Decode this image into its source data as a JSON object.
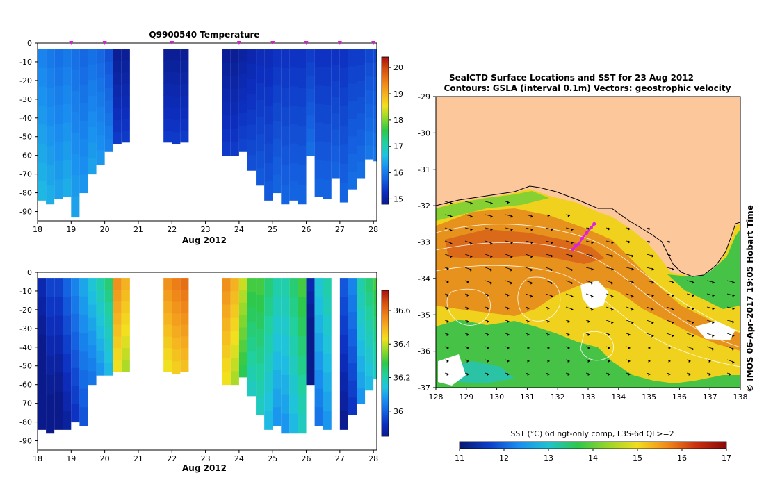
{
  "colors": {
    "land": "#fbc79b",
    "cmap_temp": [
      "#0a1a8a",
      "#0d2fc0",
      "#1460e0",
      "#1a8ef0",
      "#1fc3e0",
      "#20d0a0",
      "#2ec84a",
      "#8ed82a",
      "#f2e01e",
      "#f5b020",
      "#ee8018",
      "#d45010",
      "#a81010"
    ],
    "cmap_sst": [
      "#08186e",
      "#0d3ec9",
      "#1a8ef0",
      "#1fc3cf",
      "#2ec84a",
      "#9ad52a",
      "#f1dd1e",
      "#f28a18",
      "#c83010",
      "#8a0808"
    ]
  },
  "chart_data": [
    {
      "type": "heatmap",
      "title": "Q9900540  Temperature",
      "xlabel": "Aug 2012",
      "xticks": [
        "18",
        "19",
        "20",
        "21",
        "22",
        "23",
        "24",
        "25",
        "26",
        "27",
        "28"
      ],
      "xlim": [
        18,
        28.1
      ],
      "yticks": [
        "0",
        "-10",
        "-20",
        "-30",
        "-40",
        "-50",
        "-60",
        "-70",
        "-80",
        "-90"
      ],
      "ylim": [
        -95,
        0
      ],
      "colorbar_ticks": [
        "20",
        "19",
        "18",
        "17",
        "16",
        "15"
      ],
      "colorbar_range": [
        14.8,
        20.4
      ],
      "profile_marks_day": [
        19,
        20,
        22,
        24,
        25,
        26,
        27,
        28
      ],
      "profiles": [
        {
          "day": 18.0,
          "depth": -84,
          "value": 16.1
        },
        {
          "day": 18.25,
          "depth": -86,
          "value": 16.0
        },
        {
          "day": 18.5,
          "depth": -83,
          "value": 15.9
        },
        {
          "day": 18.75,
          "depth": -82,
          "value": 16.0
        },
        {
          "day": 19.0,
          "depth": -93,
          "value": 15.9
        },
        {
          "day": 19.25,
          "depth": -80,
          "value": 15.8
        },
        {
          "day": 19.5,
          "depth": -70,
          "value": 15.9
        },
        {
          "day": 19.75,
          "depth": -65,
          "value": 15.8
        },
        {
          "day": 20.0,
          "depth": -58,
          "value": 15.6
        },
        {
          "day": 20.25,
          "depth": -54,
          "value": 14.9
        },
        {
          "day": 20.5,
          "depth": -53,
          "value": 14.9
        },
        {
          "day": 21.75,
          "depth": -53,
          "value": 14.9
        },
        {
          "day": 22.0,
          "depth": -54,
          "value": 14.9
        },
        {
          "day": 22.25,
          "depth": -53,
          "value": 14.9
        },
        {
          "day": 23.5,
          "depth": -60,
          "value": 14.9
        },
        {
          "day": 23.75,
          "depth": -60,
          "value": 14.9
        },
        {
          "day": 24.0,
          "depth": -58,
          "value": 15.0
        },
        {
          "day": 24.25,
          "depth": -68,
          "value": 15.1
        },
        {
          "day": 24.5,
          "depth": -76,
          "value": 15.2
        },
        {
          "day": 24.75,
          "depth": -84,
          "value": 15.2
        },
        {
          "day": 25.0,
          "depth": -80,
          "value": 15.3
        },
        {
          "day": 25.25,
          "depth": -86,
          "value": 15.3
        },
        {
          "day": 25.5,
          "depth": -84,
          "value": 15.3
        },
        {
          "day": 25.75,
          "depth": -86,
          "value": 15.3
        },
        {
          "day": 26.0,
          "depth": -60,
          "value": 15.4
        },
        {
          "day": 26.25,
          "depth": -82,
          "value": 15.3
        },
        {
          "day": 26.5,
          "depth": -83,
          "value": 15.3
        },
        {
          "day": 26.75,
          "depth": -72,
          "value": 15.3
        },
        {
          "day": 27.0,
          "depth": -85,
          "value": 15.3
        },
        {
          "day": 27.25,
          "depth": -78,
          "value": 15.4
        },
        {
          "day": 27.5,
          "depth": -72,
          "value": 15.4
        },
        {
          "day": 27.75,
          "depth": -62,
          "value": 15.5
        },
        {
          "day": 28.0,
          "depth": -63,
          "value": 15.5
        }
      ]
    },
    {
      "type": "heatmap",
      "title": "",
      "xlabel": "Aug 2012",
      "xticks": [
        "18",
        "19",
        "20",
        "21",
        "22",
        "23",
        "24",
        "25",
        "26",
        "27",
        "28"
      ],
      "xlim": [
        18,
        28.1
      ],
      "yticks": [
        "0",
        "-10",
        "-20",
        "-30",
        "-40",
        "-50",
        "-60",
        "-70",
        "-80",
        "-90"
      ],
      "ylim": [
        -95,
        0
      ],
      "colorbar_ticks": [
        "36.6",
        "36.4",
        "36.2",
        "36"
      ],
      "colorbar_range": [
        35.85,
        36.72
      ],
      "profiles": [
        {
          "day": 18.0,
          "depth": -84,
          "value": 35.9
        },
        {
          "day": 18.25,
          "depth": -86,
          "value": 35.95
        },
        {
          "day": 18.5,
          "depth": -84,
          "value": 35.95
        },
        {
          "day": 18.75,
          "depth": -84,
          "value": 36.0
        },
        {
          "day": 19.0,
          "depth": -80,
          "value": 36.05
        },
        {
          "day": 19.25,
          "depth": -82,
          "value": 36.1
        },
        {
          "day": 19.5,
          "depth": -60,
          "value": 36.15
        },
        {
          "day": 19.75,
          "depth": -55,
          "value": 36.2
        },
        {
          "day": 20.0,
          "depth": -55,
          "value": 36.25
        },
        {
          "day": 20.25,
          "depth": -53,
          "value": 36.55
        },
        {
          "day": 20.5,
          "depth": -53,
          "value": 36.5
        },
        {
          "day": 21.75,
          "depth": -53,
          "value": 36.55
        },
        {
          "day": 22.0,
          "depth": -54,
          "value": 36.58
        },
        {
          "day": 22.25,
          "depth": -53,
          "value": 36.6
        },
        {
          "day": 23.5,
          "depth": -60,
          "value": 36.55
        },
        {
          "day": 23.75,
          "depth": -60,
          "value": 36.5
        },
        {
          "day": 24.0,
          "depth": -56,
          "value": 36.4
        },
        {
          "day": 24.25,
          "depth": -66,
          "value": 36.3
        },
        {
          "day": 24.5,
          "depth": -76,
          "value": 36.3
        },
        {
          "day": 24.75,
          "depth": -84,
          "value": 36.25
        },
        {
          "day": 25.0,
          "depth": -82,
          "value": 36.2
        },
        {
          "day": 25.25,
          "depth": -86,
          "value": 36.2
        },
        {
          "day": 25.5,
          "depth": -86,
          "value": 36.25
        },
        {
          "day": 25.75,
          "depth": -86,
          "value": 36.3
        },
        {
          "day": 26.0,
          "depth": -60,
          "value": 35.9
        },
        {
          "day": 26.25,
          "depth": -82,
          "value": 36.15
        },
        {
          "day": 26.5,
          "depth": -84,
          "value": 36.2
        },
        {
          "day": 27.0,
          "depth": -84,
          "value": 35.98
        },
        {
          "day": 27.25,
          "depth": -76,
          "value": 36.05
        },
        {
          "day": 27.5,
          "depth": -70,
          "value": 36.2
        },
        {
          "day": 27.75,
          "depth": -63,
          "value": 36.25
        },
        {
          "day": 28.0,
          "depth": -57,
          "value": 36.3
        }
      ]
    },
    {
      "type": "heatmap",
      "title": "SealCTD Surface Locations and SST for 23 Aug 2012",
      "subtitle": "Contours: GSLA (interval 0.1m) Vectors: geostrophic velocity",
      "xticks": [
        "128",
        "129",
        "130",
        "131",
        "132",
        "133",
        "134",
        "135",
        "136",
        "137",
        "138"
      ],
      "xlim": [
        128,
        138
      ],
      "yticks": [
        "-29",
        "-30",
        "-31",
        "-32",
        "-33",
        "-34",
        "-35",
        "-36",
        "-37"
      ],
      "ylim": [
        -37,
        -29
      ],
      "colorbar_label": "SST (°C) 6d ngt-only comp, L3S-6d QL>=2",
      "colorbar_ticks": [
        "11",
        "12",
        "13",
        "14",
        "15",
        "16",
        "17"
      ],
      "colorbar_range": [
        11,
        17
      ],
      "side_label": "© IMOS 06-Apr-2017 19:05 Hobart Time",
      "track": [
        {
          "lon": 132.5,
          "lat": -33.2
        },
        {
          "lon": 132.6,
          "lat": -33.1
        },
        {
          "lon": 132.7,
          "lat": -33.05
        },
        {
          "lon": 132.8,
          "lat": -32.9
        },
        {
          "lon": 132.95,
          "lat": -32.75
        },
        {
          "lon": 133.1,
          "lat": -32.6
        },
        {
          "lon": 133.2,
          "lat": -32.5
        }
      ]
    }
  ]
}
